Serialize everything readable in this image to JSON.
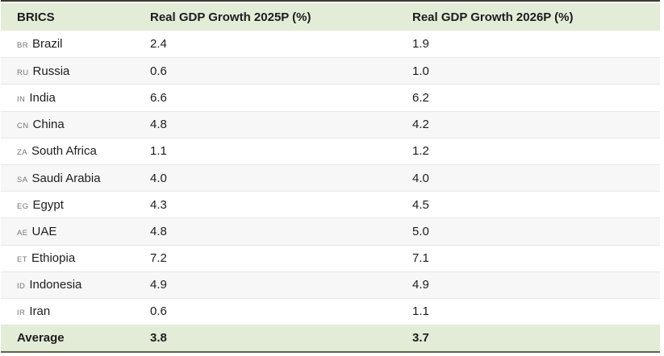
{
  "chart_data": {
    "type": "table",
    "columns": [
      "BRICS",
      "Real GDP Growth 2025P (%)",
      "Real GDP Growth 2026P (%)"
    ],
    "rows": [
      {
        "code": "BR",
        "country": "Brazil",
        "gdp_2025p": "2.4",
        "gdp_2026p": "1.9"
      },
      {
        "code": "RU",
        "country": "Russia",
        "gdp_2025p": "0.6",
        "gdp_2026p": "1.0"
      },
      {
        "code": "IN",
        "country": "India",
        "gdp_2025p": "6.6",
        "gdp_2026p": "6.2"
      },
      {
        "code": "CN",
        "country": "China",
        "gdp_2025p": "4.8",
        "gdp_2026p": "4.2"
      },
      {
        "code": "ZA",
        "country": "South Africa",
        "gdp_2025p": "1.1",
        "gdp_2026p": "1.2"
      },
      {
        "code": "SA",
        "country": "Saudi Arabia",
        "gdp_2025p": "4.0",
        "gdp_2026p": "4.0"
      },
      {
        "code": "EG",
        "country": "Egypt",
        "gdp_2025p": "4.3",
        "gdp_2026p": "4.5"
      },
      {
        "code": "AE",
        "country": "UAE",
        "gdp_2025p": "4.8",
        "gdp_2026p": "5.0"
      },
      {
        "code": "ET",
        "country": "Ethiopia",
        "gdp_2025p": "7.2",
        "gdp_2026p": "7.1"
      },
      {
        "code": "ID",
        "country": "Indonesia",
        "gdp_2025p": "4.9",
        "gdp_2026p": "4.9"
      },
      {
        "code": "IR",
        "country": "Iran",
        "gdp_2025p": "0.6",
        "gdp_2026p": "1.1"
      }
    ],
    "footer": {
      "label": "Average",
      "gdp_2025p": "3.8",
      "gdp_2026p": "3.7"
    }
  },
  "theme": {
    "header_bg": "#e3ecd7",
    "footer_bg": "#e3ecd7",
    "alt_row_bg": "#f7f7f7",
    "top_border": "#383b30",
    "bottom_border": "#5c6149",
    "row_separator": "#e7e7e7",
    "text": "#1d1d1d",
    "code_text": "#757575"
  }
}
